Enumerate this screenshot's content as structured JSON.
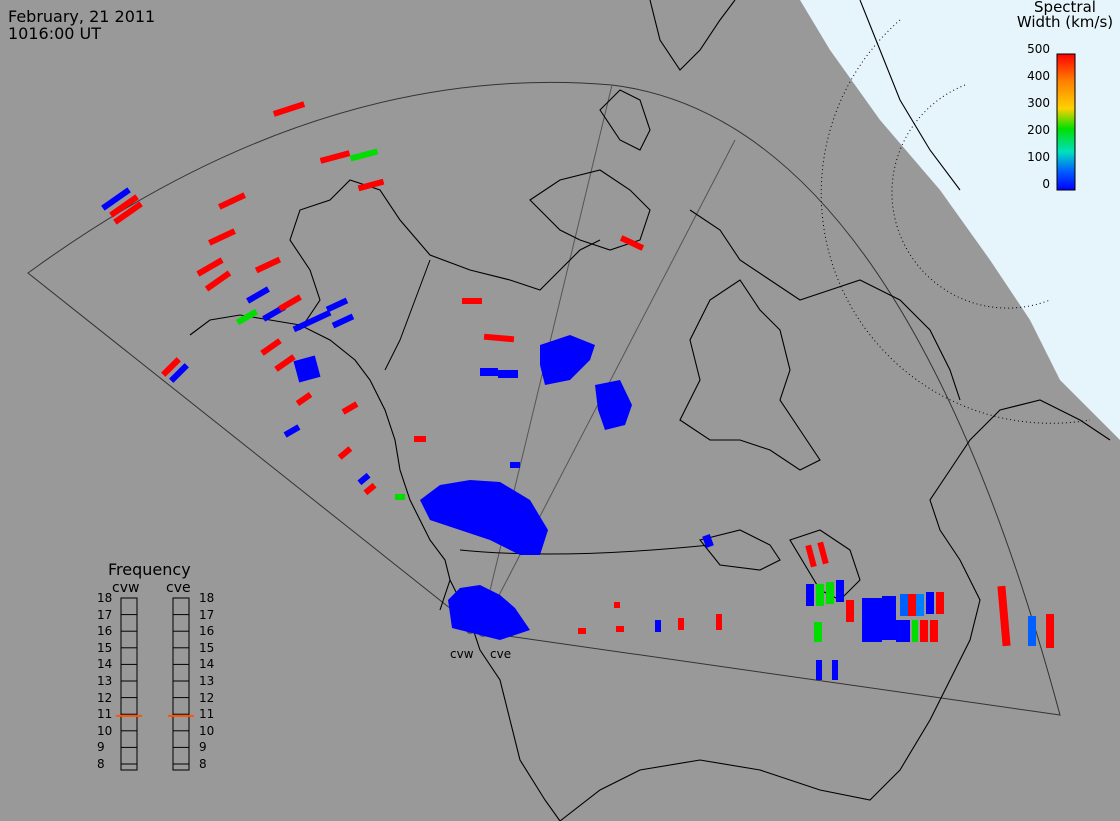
{
  "header": {
    "date": "February, 21 2011",
    "time": "1016:00 UT"
  },
  "colorbar": {
    "title_line1": "Spectral",
    "title_line2": "Width (km/s)",
    "ticks": [
      "500",
      "400",
      "300",
      "200",
      "100",
      "0"
    ],
    "colors": [
      "#ff0000",
      "#ff8000",
      "#ffd000",
      "#00e000",
      "#00e0c0",
      "#0060ff",
      "#0000ff"
    ]
  },
  "frequency_panel": {
    "title": "Frequency",
    "radars": [
      "cvw",
      "cve"
    ],
    "scale": [
      "18",
      "17",
      "16",
      "15",
      "14",
      "13",
      "12",
      "11",
      "10",
      "9",
      "8"
    ],
    "cvw_value": 10.9,
    "cve_value": 10.9,
    "marker_color": "#ff5500"
  },
  "sites": {
    "west": "cvw",
    "east": "cve"
  },
  "colors": {
    "ocean_background": "#999999",
    "polar_region": "#e8f4fc",
    "coast": "#000000",
    "scatter_low": "#0000ff",
    "scatter_high": "#ff0000"
  }
}
